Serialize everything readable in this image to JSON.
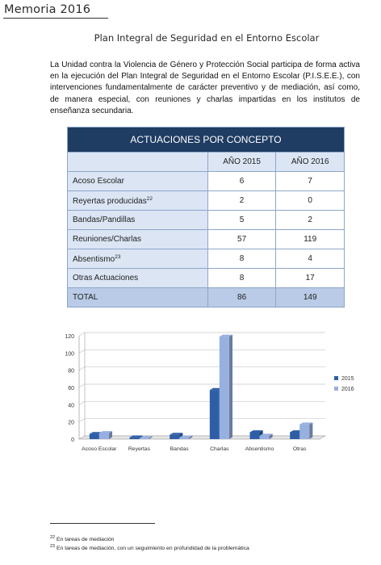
{
  "header": {
    "title": "Memoria 2016"
  },
  "section_title": "Plan Integral de Seguridad en el Entorno Escolar",
  "intro": "La Unidad contra la Violencia de Género y Protección Social participa de forma activa en la ejecución del Plan Integral de Seguridad en el Entorno Escolar (P.I.S.E.E.), con intervenciones fundamentalmente de carácter preventivo y de mediación, así como, de manera especial, con reuniones y charlas impartidas en los institutos de enseñanza secundaria.",
  "table": {
    "title": "ACTUACIONES POR CONCEPTO",
    "columns": [
      "AÑO 2015",
      "AÑO 2016"
    ],
    "rows": [
      {
        "label": "Acoso Escolar",
        "sup": "",
        "v2015": "6",
        "v2016": "7"
      },
      {
        "label": "Reyertas producidas",
        "sup": "22",
        "v2015": "2",
        "v2016": "0"
      },
      {
        "label": "Bandas/Pandillas",
        "sup": "",
        "v2015": "5",
        "v2016": "2"
      },
      {
        "label": "Reuniones/Charlas",
        "sup": "",
        "v2015": "57",
        "v2016": "119"
      },
      {
        "label": "Absentismo",
        "sup": "23",
        "v2015": "8",
        "v2016": "4"
      },
      {
        "label": "Otras Actuaciones",
        "sup": "",
        "v2015": "8",
        "v2016": "17"
      }
    ],
    "total": {
      "label": "TOTAL",
      "v2015": "86",
      "v2016": "149"
    }
  },
  "chart_data": {
    "type": "bar",
    "categories": [
      "Acoso Escolar",
      "Reyertas",
      "Bandas",
      "Charlas",
      "Absentismo",
      "Otras"
    ],
    "series": [
      {
        "name": "2015",
        "values": [
          6,
          2,
          5,
          57,
          8,
          8
        ],
        "color": "#2e5fa6"
      },
      {
        "name": "2016",
        "values": [
          7,
          0,
          2,
          119,
          4,
          17
        ],
        "color": "#97b0e0"
      }
    ],
    "ylim": [
      0,
      120
    ],
    "yticks": [
      "0",
      "20",
      "40",
      "60",
      "80",
      "100",
      "120"
    ],
    "grid": true,
    "legend": "right",
    "title": "",
    "xlabel": "",
    "ylabel": ""
  },
  "footnotes": [
    {
      "num": "22",
      "text": "En tareas de mediación"
    },
    {
      "num": "23",
      "text": "En tareas de mediación, con un seguimiento en profundidad de la problemática"
    }
  ]
}
